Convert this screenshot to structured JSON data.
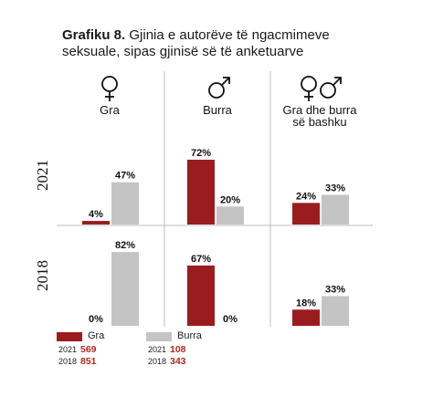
{
  "title_prefix": "Grafiku 8.",
  "title_text": "Gjinia e autorëve të ngacmimeve seksuale, sipas gjinisë së të anketuarve",
  "colors": {
    "gra": "#9b1c1f",
    "burra": "#c4c4c4",
    "count_text": "#b22a1e",
    "divider": "#bdbdbd"
  },
  "legend": {
    "gra_label": "Gra",
    "burra_label": "Burra",
    "rows": [
      {
        "year": "2021",
        "gra": "569",
        "burra": "108"
      },
      {
        "year": "2018",
        "gra": "851",
        "burra": "343"
      }
    ]
  },
  "chart_data": {
    "type": "bar",
    "title": "Grafiku 8. Gjinia e autorëve të ngacmimeve seksuale, sipas gjinisë së të anketuarve",
    "panels": [
      {
        "label": "Gra",
        "icon": "female-symbol-icon"
      },
      {
        "label": "Burra",
        "icon": "male-symbol-icon"
      },
      {
        "label_line1": "Gra dhe burra",
        "label_line2": "së bashku",
        "icon": "female-male-symbols-icon"
      }
    ],
    "rows": [
      "2021",
      "2018"
    ],
    "series": [
      {
        "name": "Gra",
        "values": {
          "2021": [
            4,
            72,
            24
          ],
          "2018": [
            0,
            67,
            18
          ]
        }
      },
      {
        "name": "Burra",
        "values": {
          "2021": [
            47,
            20,
            33
          ],
          "2018": [
            82,
            0,
            33
          ]
        }
      }
    ],
    "unit": "%",
    "ylim": [
      0,
      100
    ]
  }
}
